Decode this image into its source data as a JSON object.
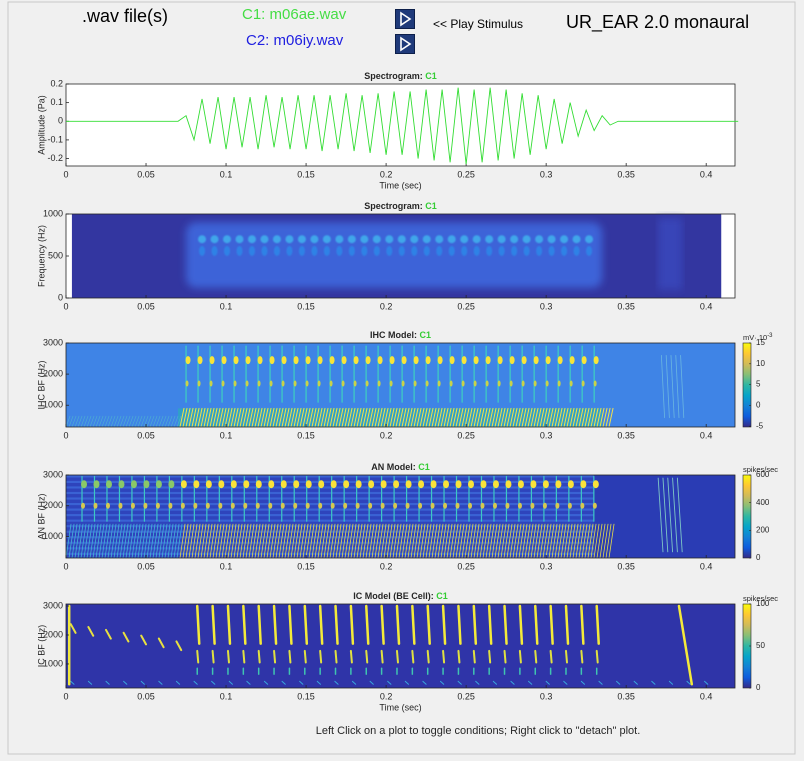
{
  "header": {
    "files_label": ".wav file(s)",
    "c1": {
      "text": "C1: m06ae.wav",
      "color": "#44dd44"
    },
    "c2": {
      "text": "C2: m06iy.wav",
      "color": "#2020e0"
    },
    "play_label": "<< Play Stimulus",
    "app_title": "UR_EAR 2.0 monaural"
  },
  "chart_data": [
    {
      "type": "line",
      "title": "Spectrogram:",
      "condition": "C1",
      "condition_color": "#33cc33",
      "xlabel": "Time (sec)",
      "ylabel": "Amplitude (Pa)",
      "color": "#33dd33",
      "x": [
        0,
        0.07,
        0.075,
        0.08,
        0.085,
        0.09,
        0.095,
        0.1,
        0.105,
        0.11,
        0.115,
        0.12,
        0.125,
        0.13,
        0.135,
        0.14,
        0.145,
        0.15,
        0.155,
        0.16,
        0.165,
        0.17,
        0.175,
        0.18,
        0.185,
        0.19,
        0.195,
        0.2,
        0.205,
        0.21,
        0.215,
        0.22,
        0.225,
        0.23,
        0.235,
        0.24,
        0.245,
        0.25,
        0.255,
        0.26,
        0.265,
        0.27,
        0.275,
        0.28,
        0.285,
        0.29,
        0.295,
        0.3,
        0.305,
        0.31,
        0.315,
        0.32,
        0.325,
        0.33,
        0.335,
        0.34,
        0.345,
        0.42
      ],
      "values": [
        0,
        0,
        0.03,
        -0.1,
        0.12,
        -0.12,
        0.13,
        -0.15,
        0.13,
        -0.14,
        0.13,
        -0.15,
        0.14,
        -0.14,
        0.13,
        -0.15,
        0.14,
        -0.15,
        0.14,
        -0.16,
        0.14,
        -0.15,
        0.15,
        -0.16,
        0.14,
        -0.17,
        0.15,
        -0.18,
        0.16,
        -0.18,
        0.16,
        -0.2,
        0.17,
        -0.21,
        0.17,
        -0.22,
        0.18,
        -0.23,
        0.17,
        -0.22,
        0.18,
        -0.21,
        0.17,
        -0.2,
        0.15,
        -0.18,
        0.14,
        -0.15,
        0.12,
        -0.12,
        0.1,
        -0.08,
        0.06,
        -0.05,
        0.03,
        -0.02,
        0,
        0
      ],
      "xlim": [
        0,
        0.418
      ],
      "ylim": [
        -0.24,
        0.2
      ],
      "xticks": [
        0,
        0.05,
        0.1,
        0.15,
        0.2,
        0.25,
        0.3,
        0.35,
        0.4
      ],
      "yticks": [
        -0.2,
        -0.1,
        0,
        0.1,
        0.2
      ]
    },
    {
      "type": "heatmap",
      "title": "Spectrogram:",
      "condition": "C1",
      "condition_color": "#33cc33",
      "ylabel": "Frequency (Hz)",
      "xlim": [
        0,
        0.418
      ],
      "ylim": [
        0,
        1000
      ],
      "xticks": [
        0,
        0.05,
        0.1,
        0.15,
        0.2,
        0.25,
        0.3,
        0.35,
        0.4
      ],
      "yticks": [
        0,
        500,
        1000
      ]
    },
    {
      "type": "heatmap",
      "title": "IHC Model:",
      "condition": "C1",
      "condition_color": "#33cc33",
      "ylabel": "IHC BF (Hz)",
      "xlim": [
        0,
        0.418
      ],
      "ylim": [
        300,
        3000
      ],
      "xticks": [
        0,
        0.05,
        0.1,
        0.15,
        0.2,
        0.25,
        0.3,
        0.35,
        0.4
      ],
      "yticks": [
        1000,
        2000,
        3000
      ],
      "colorbar_label": "mV· 10",
      "colorbar_exponent": "-3",
      "clim": [
        -5.2,
        15
      ],
      "cticks": [
        -5,
        0,
        5,
        10,
        15
      ]
    },
    {
      "type": "heatmap",
      "title": "AN Model:",
      "condition": "C1",
      "condition_color": "#33cc33",
      "ylabel": "AN BF (Hz)",
      "xlim": [
        0,
        0.418
      ],
      "ylim": [
        300,
        3000
      ],
      "xticks": [
        0,
        0.05,
        0.1,
        0.15,
        0.2,
        0.25,
        0.3,
        0.35,
        0.4
      ],
      "yticks": [
        1000,
        2000,
        3000
      ],
      "colorbar_label": "spikes/sec",
      "clim": [
        0,
        600
      ],
      "cticks": [
        0,
        200,
        400,
        600
      ]
    },
    {
      "type": "heatmap",
      "title": "IC Model (BE Cell):",
      "condition": "C1",
      "condition_color": "#33cc33",
      "xlabel": "Time (sec)",
      "ylabel": "IC BF (Hz)",
      "xlim": [
        0,
        0.418
      ],
      "ylim": [
        170,
        3070
      ],
      "xticks": [
        0,
        0.05,
        0.1,
        0.15,
        0.2,
        0.25,
        0.3,
        0.35,
        0.4
      ],
      "yticks": [
        1000,
        2000,
        3000
      ],
      "colorbar_label": "spikes/sec",
      "clim": [
        0,
        100
      ],
      "cticks": [
        0,
        50,
        100
      ]
    }
  ],
  "footer": "Left Click on a plot to toggle conditions; Right click to \"detach\" plot."
}
